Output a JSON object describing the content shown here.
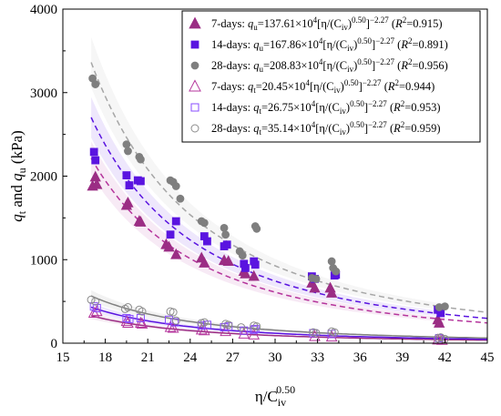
{
  "chart_data": {
    "type": "scatter",
    "title": "",
    "xlabel": {
      "main": "η/C",
      "sub": "iv",
      "sup": "0.50"
    },
    "ylabel": {
      "q": "q",
      "sub1": "t",
      "mid": " and ",
      "sub2": "u",
      "unit": " (kPa)"
    },
    "xlim": [
      15,
      45
    ],
    "ylim": [
      0,
      4000
    ],
    "x_ticks": [
      "15",
      "18",
      "21",
      "24",
      "27",
      "30",
      "33",
      "36",
      "39",
      "42",
      "45"
    ],
    "y_ticks": [
      "0",
      "1000",
      "2000",
      "3000",
      "4000"
    ],
    "grid": false,
    "legend_position": "top-right",
    "legend": [
      {
        "period": "7-days",
        "sep": ": ",
        "sub": "u",
        "coef": "137.61",
        "r2": "0.915"
      },
      {
        "period": "14-days",
        "sep": ": ",
        "sub": "u",
        "coef": "167.86",
        "r2": "0.891"
      },
      {
        "period": "28-days",
        "sep": ": ",
        "sub": "u",
        "coef": "208.83",
        "r2": "0.956"
      },
      {
        "period": "7-days",
        "sep": ": ",
        "sub": "t",
        "coef": "20.45",
        "r2": "0.944"
      },
      {
        "period": "14-days",
        "sep": ": ",
        "sub": "t",
        "coef": "26.75",
        "r2": "0.953"
      },
      {
        "period": "28-days",
        "sep": ": ",
        "sub": "t",
        "coef": "35.14",
        "r2": "0.959"
      }
    ],
    "series": [
      {
        "marker": "triangle",
        "filled": true,
        "color": "#9b2d84",
        "fit_color": "#b5359c",
        "fit_coef": 137.61,
        "points": [
          [
            17.1,
            1880
          ],
          [
            17.3,
            1990
          ],
          [
            17.4,
            1900
          ],
          [
            19.5,
            1650
          ],
          [
            19.6,
            1680
          ],
          [
            20.4,
            1460
          ],
          [
            20.5,
            1450
          ],
          [
            22.3,
            1180
          ],
          [
            22.5,
            1150
          ],
          [
            23,
            1060
          ],
          [
            24.8,
            1020
          ],
          [
            25,
            960
          ],
          [
            26.4,
            990
          ],
          [
            26.7,
            980
          ],
          [
            27.8,
            860
          ],
          [
            27.9,
            830
          ],
          [
            28.5,
            800
          ],
          [
            32.6,
            720
          ],
          [
            32.8,
            660
          ],
          [
            33.9,
            660
          ],
          [
            34,
            600
          ],
          [
            41.5,
            280
          ],
          [
            41.6,
            240
          ]
        ]
      },
      {
        "marker": "square",
        "filled": true,
        "color": "#5a14e0",
        "fit_color": "#5a14e0",
        "fit_coef": 167.86,
        "points": [
          [
            17.2,
            2290
          ],
          [
            17.3,
            2190
          ],
          [
            19.5,
            2010
          ],
          [
            19.7,
            1890
          ],
          [
            20.3,
            1950
          ],
          [
            20.5,
            1940
          ],
          [
            22.6,
            1300
          ],
          [
            23,
            1460
          ],
          [
            25,
            1280
          ],
          [
            25.2,
            1220
          ],
          [
            26.4,
            1160
          ],
          [
            26.6,
            1180
          ],
          [
            27.8,
            950
          ],
          [
            27.9,
            900
          ],
          [
            28.5,
            980
          ],
          [
            28.6,
            940
          ],
          [
            32.6,
            800
          ],
          [
            32.8,
            770
          ],
          [
            34.2,
            810
          ],
          [
            34.3,
            820
          ],
          [
            41.5,
            400
          ],
          [
            41.7,
            360
          ]
        ]
      },
      {
        "marker": "circle",
        "filled": true,
        "color": "#7f7f7f",
        "fit_color": "#a6a6a6",
        "fit_coef": 208.83,
        "points": [
          [
            17.1,
            3170
          ],
          [
            17.3,
            3100
          ],
          [
            19.5,
            2380
          ],
          [
            19.6,
            2300
          ],
          [
            20.4,
            2230
          ],
          [
            20.5,
            2200
          ],
          [
            22.6,
            1950
          ],
          [
            22.8,
            1930
          ],
          [
            23.3,
            1730
          ],
          [
            23,
            1880
          ],
          [
            24.8,
            1460
          ],
          [
            25,
            1440
          ],
          [
            26.4,
            1380
          ],
          [
            26.5,
            1300
          ],
          [
            27.5,
            1100
          ],
          [
            27.7,
            1050
          ],
          [
            28.6,
            1400
          ],
          [
            28.7,
            1370
          ],
          [
            32.6,
            780
          ],
          [
            32.9,
            770
          ],
          [
            34,
            980
          ],
          [
            34.1,
            900
          ],
          [
            34.3,
            860
          ],
          [
            41.6,
            430
          ],
          [
            42,
            440
          ]
        ]
      },
      {
        "marker": "triangle",
        "filled": false,
        "color": "#b5359c",
        "fit_color": "#9b2d84",
        "fit_coef": 20.45,
        "points": [
          [
            17.2,
            360
          ],
          [
            17.4,
            380
          ],
          [
            19.5,
            260
          ],
          [
            19.6,
            240
          ],
          [
            20.5,
            240
          ],
          [
            20.6,
            230
          ],
          [
            22.6,
            190
          ],
          [
            22.8,
            180
          ],
          [
            24.8,
            160
          ],
          [
            25,
            150
          ],
          [
            26.5,
            140
          ],
          [
            27.8,
            110
          ],
          [
            28.5,
            100
          ],
          [
            32.8,
            80
          ],
          [
            34,
            75
          ],
          [
            41.5,
            40
          ],
          [
            41.8,
            35
          ]
        ]
      },
      {
        "marker": "square",
        "filled": false,
        "color": "#8a4dff",
        "fit_color": "#5a14e0",
        "fit_coef": 26.75,
        "points": [
          [
            17.2,
            440
          ],
          [
            17.4,
            420
          ],
          [
            19.5,
            300
          ],
          [
            19.7,
            290
          ],
          [
            20.5,
            300
          ],
          [
            22.5,
            280
          ],
          [
            22.9,
            250
          ],
          [
            24.8,
            210
          ],
          [
            25.2,
            220
          ],
          [
            26.4,
            190
          ],
          [
            26.7,
            200
          ],
          [
            27.8,
            150
          ],
          [
            28.5,
            160
          ],
          [
            28.6,
            170
          ],
          [
            32.7,
            120
          ],
          [
            34,
            110
          ],
          [
            41.6,
            60
          ]
        ]
      },
      {
        "marker": "circle",
        "filled": false,
        "color": "#8c8c8c",
        "fit_color": "#808080",
        "fit_coef": 35.14,
        "points": [
          [
            17,
            520
          ],
          [
            17.3,
            500
          ],
          [
            19.4,
            410
          ],
          [
            19.6,
            430
          ],
          [
            20.4,
            400
          ],
          [
            20.6,
            380
          ],
          [
            22.6,
            380
          ],
          [
            22.8,
            370
          ],
          [
            23,
            270
          ],
          [
            24.8,
            240
          ],
          [
            25,
            250
          ],
          [
            26.5,
            230
          ],
          [
            26.7,
            220
          ],
          [
            27.6,
            190
          ],
          [
            28.5,
            210
          ],
          [
            28.7,
            200
          ],
          [
            32.7,
            130
          ],
          [
            32.9,
            120
          ],
          [
            34,
            140
          ],
          [
            34.2,
            130
          ],
          [
            41.5,
            60
          ],
          [
            41.7,
            70
          ],
          [
            42,
            50
          ]
        ]
      }
    ]
  }
}
